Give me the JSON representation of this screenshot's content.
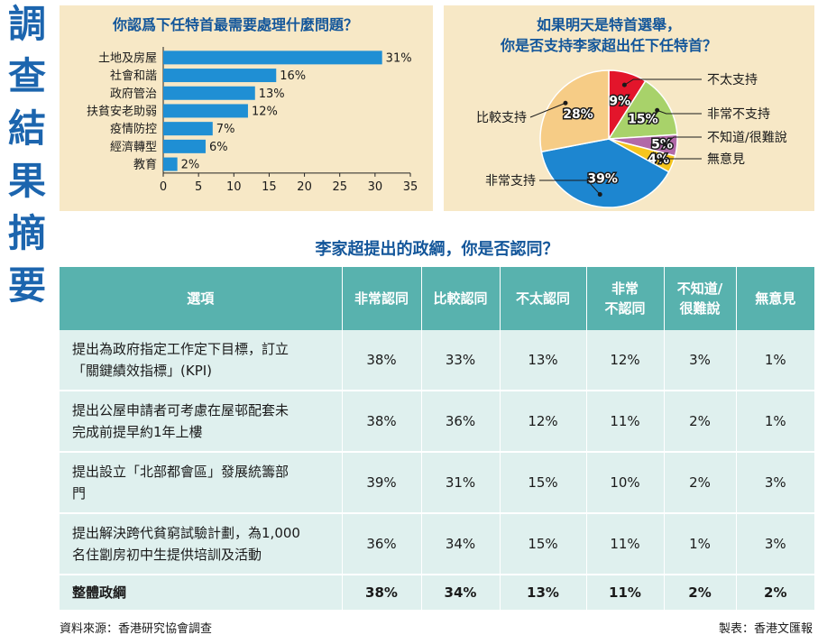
{
  "side_title": [
    "調",
    "查",
    "結",
    "果",
    "摘",
    "要"
  ],
  "chart_data": [
    {
      "type": "bar",
      "orientation": "horizontal",
      "title": "你認爲下任特首最需要處理什麼問題？",
      "categories": [
        "土地及房屋",
        "社會和諧",
        "政府管治",
        "扶貧安老助弱",
        "疫情防控",
        "經濟轉型",
        "教育"
      ],
      "values": [
        31,
        16,
        13,
        12,
        7,
        6,
        2
      ],
      "value_labels": [
        "31%",
        "16%",
        "13%",
        "12%",
        "7%",
        "6%",
        "2%"
      ],
      "xlim": [
        0,
        35
      ],
      "xticks": [
        "0",
        "5",
        "10",
        "15",
        "20",
        "25",
        "30",
        "35"
      ],
      "grid": false,
      "color": "#1f8fd4"
    },
    {
      "type": "pie",
      "title_lines": [
        "如果明天是特首選舉，",
        "你是否支持李家超出任下任特首？"
      ],
      "slices": [
        {
          "label": "不太支持",
          "value": 9,
          "text": "9%",
          "color": "#e3152b"
        },
        {
          "label": "非常不支持",
          "value": 15,
          "text": "15%",
          "color": "#a8d26a"
        },
        {
          "label": "不知道/很難說",
          "value": 5,
          "text": "5%",
          "color": "#b169a8"
        },
        {
          "label": "無意見",
          "value": 4,
          "text": "4%",
          "color": "#f5c51e"
        },
        {
          "label": "非常支持",
          "value": 39,
          "text": "39%",
          "color": "#1d86d0"
        },
        {
          "label": "比較支持",
          "value": 28,
          "text": "28%",
          "color": "#f6cc86"
        }
      ]
    },
    {
      "type": "table",
      "title": "李家超提出的政綱，你是否認同？",
      "header": {
        "item": "選項",
        "c1": "非常認同",
        "c2": "比較認同",
        "c3": "不太認同",
        "c4": [
          "非常",
          "不認同"
        ],
        "c5": [
          "不知道/",
          "很難說"
        ],
        "c6": "無意見"
      },
      "rows": [
        {
          "item": [
            "提出為政府指定工作定下目標，訂立",
            "「關鍵績效指標」(KPI)"
          ],
          "values": [
            "38%",
            "33%",
            "13%",
            "12%",
            "3%",
            "1%"
          ]
        },
        {
          "item": [
            "提出公屋申請者可考慮在屋邨配套未",
            "完成前提早約1年上樓"
          ],
          "values": [
            "38%",
            "36%",
            "12%",
            "11%",
            "2%",
            "1%"
          ]
        },
        {
          "item": [
            "提出設立「北部都會區」發展統籌部",
            "門"
          ],
          "values": [
            "39%",
            "31%",
            "15%",
            "10%",
            "2%",
            "3%"
          ]
        },
        {
          "item": [
            "提出解決跨代貧窮試驗計劃，為1,000",
            "名住劏房初中生提供培訓及活動"
          ],
          "values": [
            "36%",
            "34%",
            "15%",
            "11%",
            "1%",
            "3%"
          ]
        }
      ],
      "total": {
        "item": "整體政綱",
        "values": [
          "38%",
          "34%",
          "13%",
          "11%",
          "2%",
          "2%"
        ]
      }
    }
  ],
  "footer": {
    "source": "資料來源：香港研究協會調查",
    "credit": "製表：香港文匯報"
  }
}
